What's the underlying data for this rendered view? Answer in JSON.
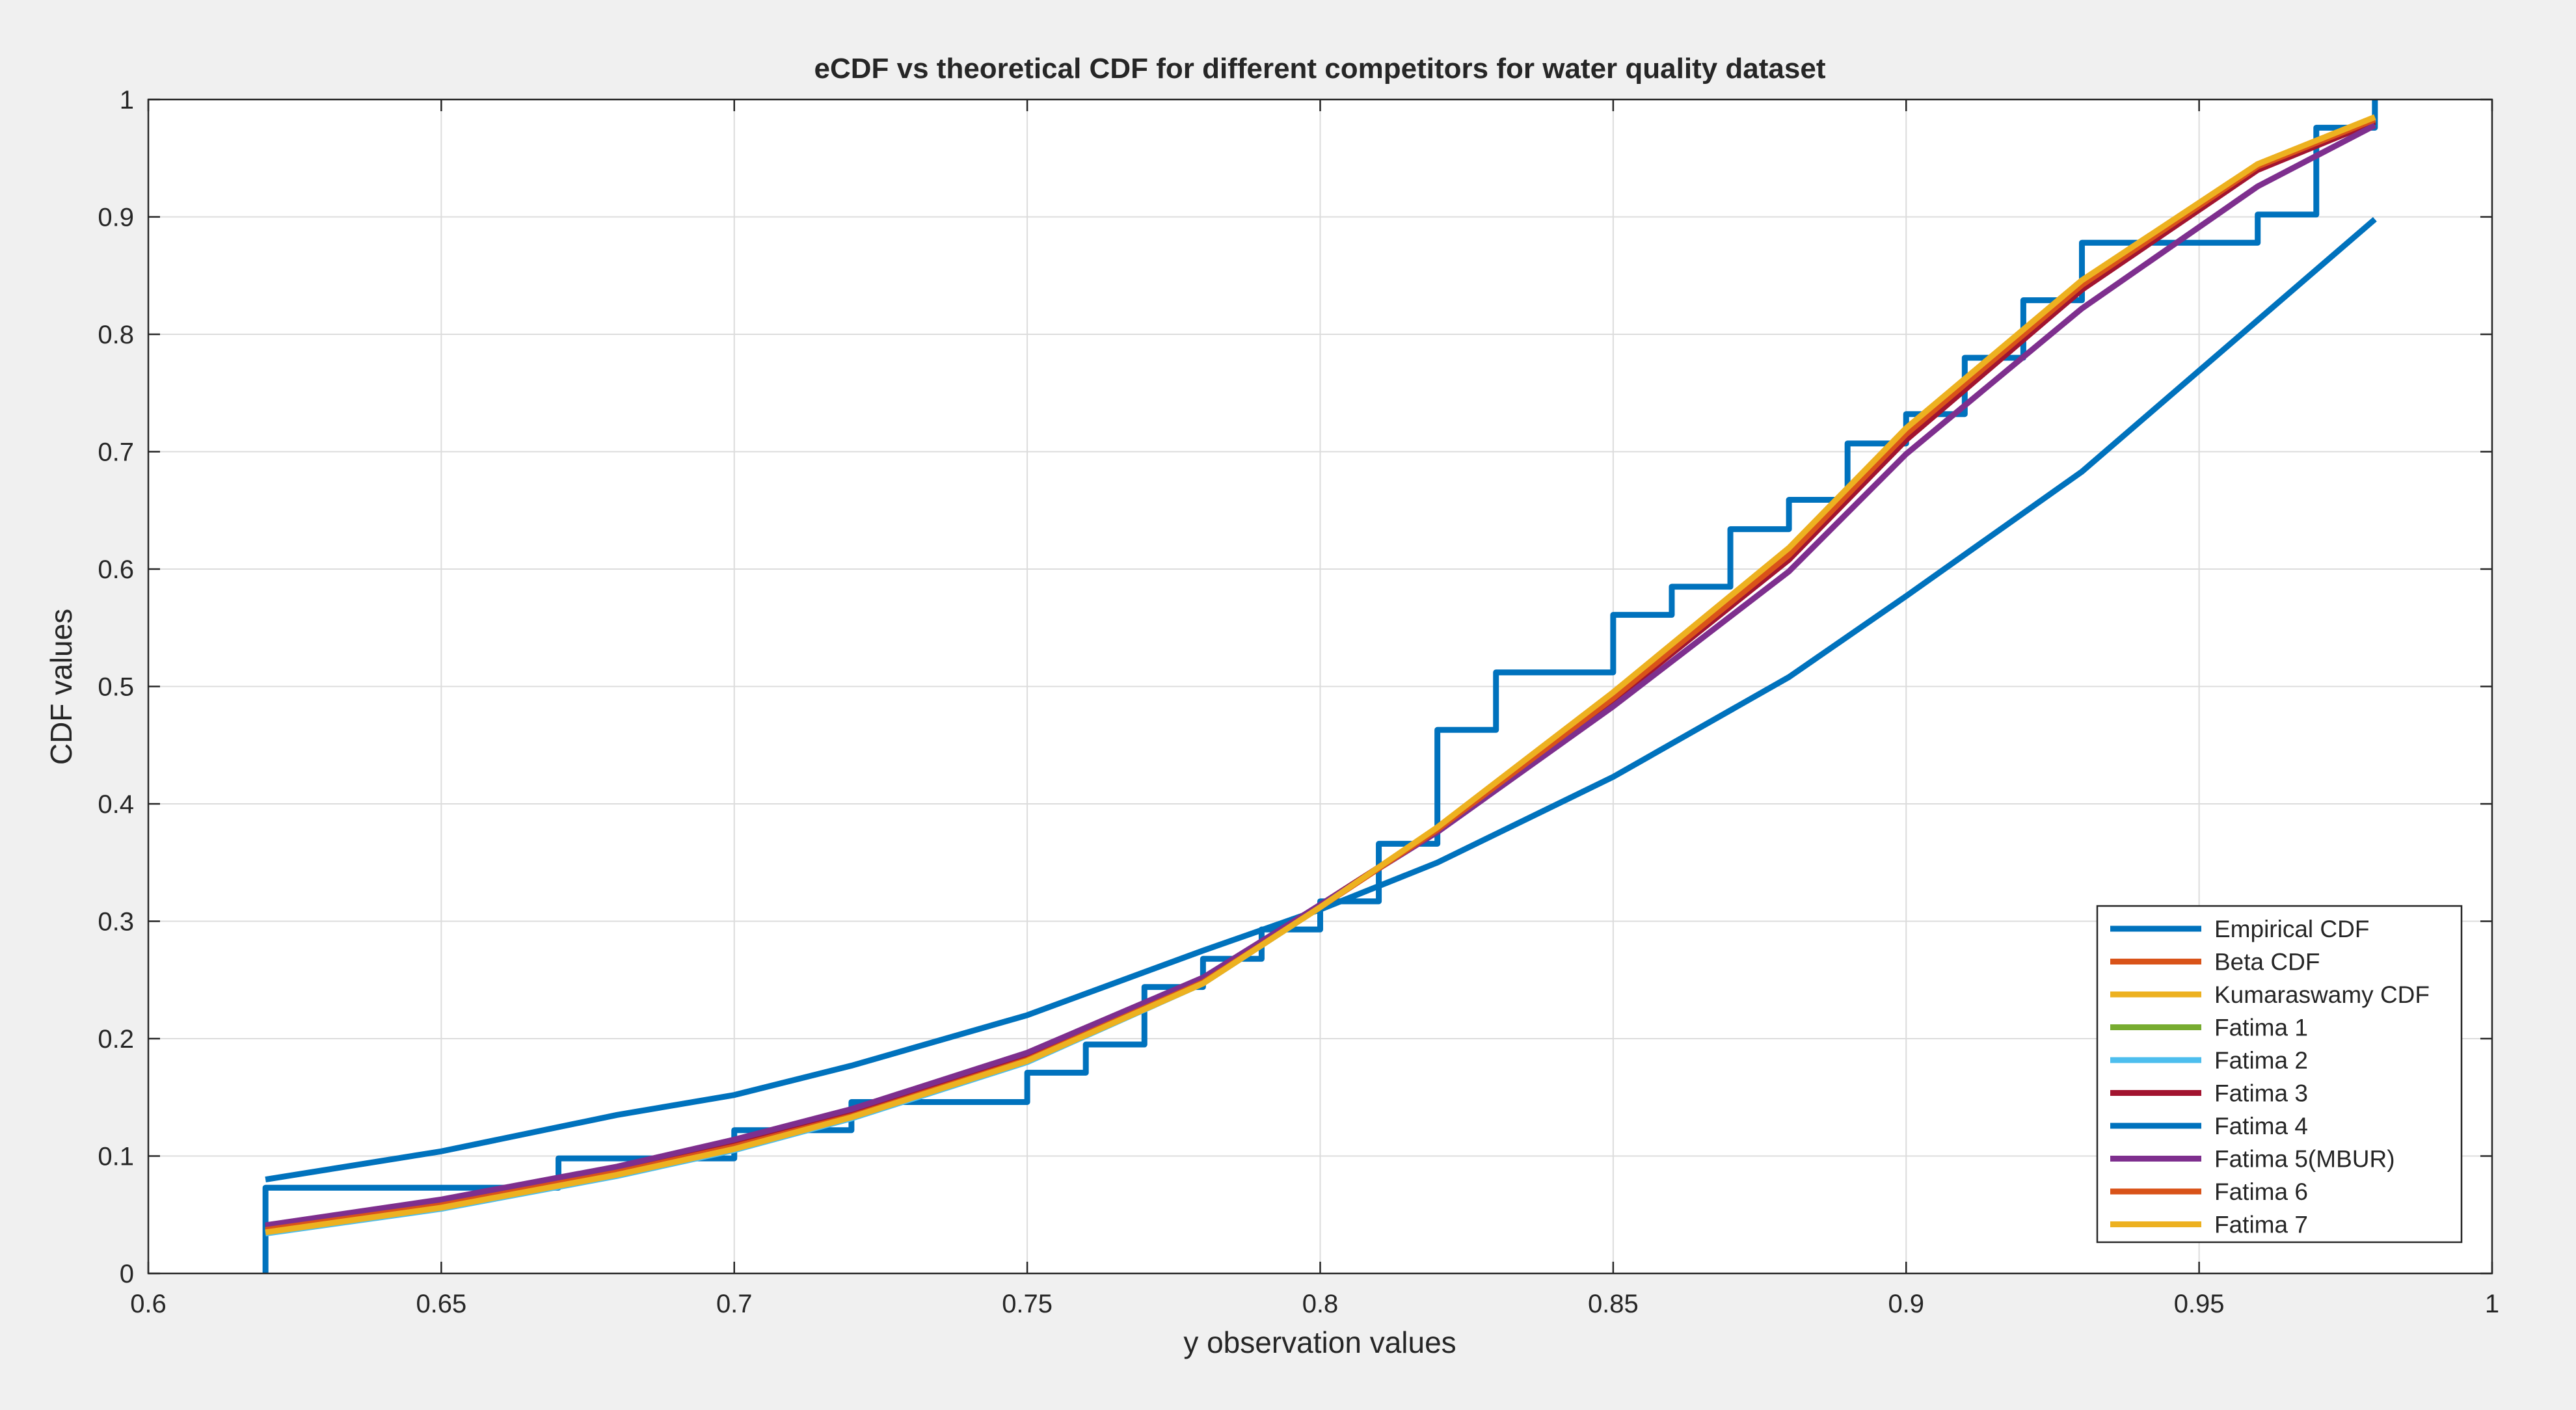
{
  "chart_data": {
    "type": "line",
    "title": "eCDF vs theoretical CDF for different competitors for water quality dataset",
    "xlabel": "y observation values",
    "ylabel": "CDF values",
    "xlim": [
      0.6,
      1.0
    ],
    "ylim": [
      0,
      1
    ],
    "grid": true,
    "legend_position": "bottom-right",
    "x_ticks": [
      0.6,
      0.65,
      0.7,
      0.75,
      0.8,
      0.85,
      0.9,
      0.95,
      1.0
    ],
    "x_tick_labels": [
      "0.6",
      "0.65",
      "0.7",
      "0.75",
      "0.8",
      "0.85",
      "0.9",
      "0.95",
      "1"
    ],
    "y_ticks": [
      0,
      0.1,
      0.2,
      0.3,
      0.4,
      0.5,
      0.6,
      0.7,
      0.8,
      0.9,
      1.0
    ],
    "y_tick_labels": [
      "0",
      "0.1",
      "0.2",
      "0.3",
      "0.4",
      "0.5",
      "0.6",
      "0.7",
      "0.8",
      "0.9",
      "1"
    ],
    "series": [
      {
        "name": "Empirical CDF",
        "color": "#0072BD",
        "style": "stairs",
        "x": [
          0.62,
          0.67,
          0.7,
          0.72,
          0.75,
          0.76,
          0.77,
          0.78,
          0.79,
          0.8,
          0.81,
          0.82,
          0.83,
          0.85,
          0.86,
          0.87,
          0.88,
          0.89,
          0.9,
          0.91,
          0.92,
          0.93,
          0.96,
          0.97,
          0.98
        ],
        "y": [
          0.073,
          0.098,
          0.122,
          0.146,
          0.171,
          0.195,
          0.244,
          0.268,
          0.293,
          0.317,
          0.366,
          0.463,
          0.512,
          0.561,
          0.585,
          0.634,
          0.659,
          0.707,
          0.732,
          0.78,
          0.829,
          0.878,
          0.902,
          0.976,
          1.0
        ]
      },
      {
        "name": "Beta CDF",
        "color": "#D95319",
        "x": [
          0.62,
          0.65,
          0.68,
          0.7,
          0.72,
          0.75,
          0.78,
          0.8,
          0.82,
          0.85,
          0.88,
          0.9,
          0.93,
          0.96,
          0.98
        ],
        "y": [
          0.037,
          0.058,
          0.086,
          0.108,
          0.134,
          0.182,
          0.248,
          0.312,
          0.378,
          0.49,
          0.612,
          0.715,
          0.842,
          0.943,
          0.983
        ]
      },
      {
        "name": "Kumaraswamy CDF",
        "color": "#EDB120",
        "x": [
          0.62,
          0.65,
          0.68,
          0.7,
          0.72,
          0.75,
          0.78,
          0.8,
          0.82,
          0.85,
          0.88,
          0.9,
          0.93,
          0.96,
          0.98
        ],
        "y": [
          0.035,
          0.056,
          0.084,
          0.106,
          0.133,
          0.181,
          0.247,
          0.312,
          0.38,
          0.495,
          0.618,
          0.72,
          0.846,
          0.945,
          0.985
        ]
      },
      {
        "name": "Fatima 1",
        "color": "#77AC30",
        "x": [
          0.62,
          0.65,
          0.68,
          0.7,
          0.72,
          0.75,
          0.78,
          0.8,
          0.82,
          0.85,
          0.88,
          0.9,
          0.93,
          0.96,
          0.98
        ],
        "y": [
          0.036,
          0.057,
          0.085,
          0.107,
          0.134,
          0.182,
          0.248,
          0.312,
          0.379,
          0.492,
          0.614,
          0.717,
          0.843,
          0.943,
          0.983
        ]
      },
      {
        "name": "Fatima 2",
        "color": "#4DBEEE",
        "x": [
          0.62,
          0.65,
          0.68,
          0.7,
          0.72,
          0.75,
          0.78,
          0.8,
          0.82,
          0.85,
          0.88,
          0.9,
          0.93,
          0.96,
          0.98
        ],
        "y": [
          0.034,
          0.055,
          0.083,
          0.105,
          0.132,
          0.18,
          0.247,
          0.312,
          0.379,
          0.493,
          0.616,
          0.718,
          0.844,
          0.944,
          0.984
        ]
      },
      {
        "name": "Fatima 3",
        "color": "#A2142F",
        "x": [
          0.62,
          0.65,
          0.68,
          0.7,
          0.72,
          0.75,
          0.78,
          0.8,
          0.82,
          0.85,
          0.88,
          0.9,
          0.93,
          0.96,
          0.98
        ],
        "y": [
          0.04,
          0.062,
          0.09,
          0.112,
          0.138,
          0.186,
          0.251,
          0.314,
          0.378,
          0.488,
          0.608,
          0.71,
          0.838,
          0.94,
          0.981
        ]
      },
      {
        "name": "Fatima 4",
        "color": "#0072BD",
        "x": [
          0.62,
          0.65,
          0.68,
          0.7,
          0.72,
          0.75,
          0.78,
          0.8,
          0.82,
          0.85,
          0.88,
          0.9,
          0.93,
          0.96,
          0.98
        ],
        "y": [
          0.08,
          0.104,
          0.135,
          0.152,
          0.177,
          0.22,
          0.275,
          0.31,
          0.35,
          0.423,
          0.508,
          0.577,
          0.683,
          0.812,
          0.898
        ]
      },
      {
        "name": "Fatima 5(MBUR)",
        "color": "#7E2F8E",
        "x": [
          0.62,
          0.65,
          0.68,
          0.7,
          0.72,
          0.75,
          0.78,
          0.8,
          0.82,
          0.85,
          0.88,
          0.9,
          0.93,
          0.96,
          0.98
        ],
        "y": [
          0.041,
          0.063,
          0.091,
          0.114,
          0.14,
          0.188,
          0.252,
          0.314,
          0.376,
          0.483,
          0.598,
          0.698,
          0.822,
          0.926,
          0.978
        ]
      },
      {
        "name": "Fatima 6",
        "color": "#D95319",
        "x": [
          0.62,
          0.65,
          0.68,
          0.7,
          0.72,
          0.75,
          0.78,
          0.8,
          0.82,
          0.85,
          0.88,
          0.9,
          0.93,
          0.96,
          0.98
        ],
        "y": [
          0.037,
          0.058,
          0.086,
          0.108,
          0.134,
          0.182,
          0.248,
          0.312,
          0.378,
          0.49,
          0.612,
          0.715,
          0.842,
          0.943,
          0.983
        ]
      },
      {
        "name": "Fatima 7",
        "color": "#EDB120",
        "x": [
          0.62,
          0.65,
          0.68,
          0.7,
          0.72,
          0.75,
          0.78,
          0.8,
          0.82,
          0.85,
          0.88,
          0.9,
          0.93,
          0.96,
          0.98
        ],
        "y": [
          0.035,
          0.056,
          0.084,
          0.106,
          0.133,
          0.181,
          0.247,
          0.312,
          0.38,
          0.495,
          0.618,
          0.72,
          0.846,
          0.945,
          0.985
        ]
      }
    ]
  }
}
